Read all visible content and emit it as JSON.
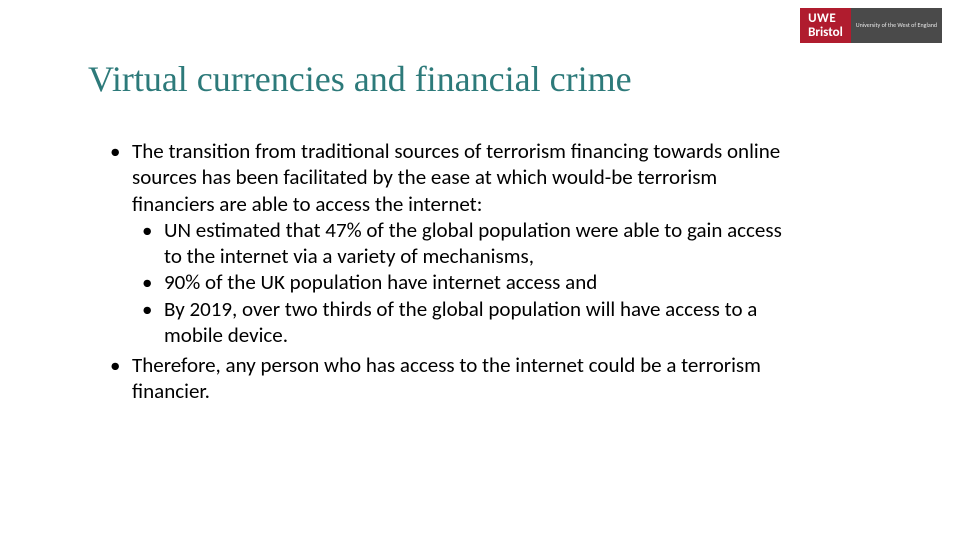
{
  "logo": {
    "line1": "UWE",
    "line2": "Bristol",
    "sub": "University\nof the\nWest of\nEngland"
  },
  "title": "Virtual currencies and financial crime",
  "bullets": {
    "b1": "The transition from traditional sources of terrorism financing towards online sources has been facilitated by the ease at which would-be terrorism financiers are able to access the internet:",
    "b1a": "UN estimated that 47% of the global population were able to gain access to the internet via a variety of mechanisms,",
    "b1b": "90% of the UK population have internet access and",
    "b1c": "By 2019, over two thirds of the global population will have access to a mobile device.",
    "b2": "Therefore, any person who has access to the internet could be a terrorism financier."
  },
  "colors": {
    "title": "#2d7a7a",
    "logo_bg": "#b01c2e",
    "logo_sub_bg": "#4a4a4a",
    "text": "#000000",
    "background": "#ffffff"
  },
  "typography": {
    "title_family": "Georgia, serif",
    "title_size_pt": 28,
    "body_family": "Calibri, sans-serif",
    "body_size_pt": 16
  }
}
